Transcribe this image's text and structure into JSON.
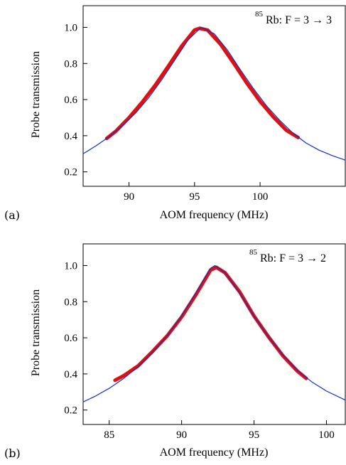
{
  "chart_data": [
    {
      "type": "line",
      "panel_label": "(a)",
      "xlabel": "AOM frequency (MHz)",
      "ylabel": "Probe transmission",
      "annotation": {
        "isotope_mass": "85",
        "text": "Rb: F = 3 → 3"
      },
      "xlim": [
        86.5,
        106.5
      ],
      "ylim": [
        0.12,
        1.12
      ],
      "xticks": [
        90,
        95,
        100
      ],
      "xtick_labels": [
        "90",
        "95",
        "100"
      ],
      "yticks": [
        0.2,
        0.4,
        0.6,
        0.8,
        1.0
      ],
      "ytick_labels": [
        "0.2",
        "0.4",
        "0.6",
        "0.8",
        "1.0"
      ],
      "grid": false,
      "series": [
        {
          "kind": "fit",
          "color": "#1030c8",
          "x": [
            86.5,
            87.5,
            88.5,
            89.5,
            90.5,
            91.5,
            92.5,
            93.5,
            94.5,
            95.5,
            96.5,
            97.5,
            98.5,
            99.5,
            100.5,
            101.5,
            102.5,
            103.5,
            104.5,
            105.5,
            106.5
          ],
          "y": [
            0.3,
            0.345,
            0.395,
            0.455,
            0.525,
            0.61,
            0.71,
            0.82,
            0.93,
            1.0,
            0.965,
            0.875,
            0.765,
            0.66,
            0.565,
            0.485,
            0.415,
            0.36,
            0.32,
            0.29,
            0.265
          ]
        },
        {
          "kind": "data",
          "color": "#e01010",
          "x": [
            88.3,
            89.0,
            90.0,
            91.0,
            92.0,
            93.0,
            94.0,
            95.0,
            95.4,
            96.0,
            97.0,
            98.0,
            99.0,
            100.0,
            101.0,
            102.0,
            102.9
          ],
          "y": [
            0.385,
            0.425,
            0.5,
            0.585,
            0.68,
            0.785,
            0.895,
            0.985,
            0.995,
            0.985,
            0.905,
            0.8,
            0.69,
            0.59,
            0.505,
            0.43,
            0.39
          ]
        }
      ]
    },
    {
      "type": "line",
      "panel_label": "(b)",
      "xlabel": "AOM frequency (MHz)",
      "ylabel": "Probe transmission",
      "annotation": {
        "isotope_mass": "85",
        "text": "Rb: F = 3 → 2"
      },
      "xlim": [
        83.2,
        101.3
      ],
      "ylim": [
        0.12,
        1.12
      ],
      "xticks": [
        85,
        90,
        95,
        100
      ],
      "xtick_labels": [
        "85",
        "90",
        "95",
        "100"
      ],
      "yticks": [
        0.2,
        0.4,
        0.6,
        0.8,
        1.0
      ],
      "ytick_labels": [
        "0.2",
        "0.4",
        "0.6",
        "0.8",
        "1.0"
      ],
      "grid": false,
      "series": [
        {
          "kind": "fit",
          "color": "#1030c8",
          "x": [
            83.2,
            84.0,
            85.0,
            86.0,
            87.0,
            88.0,
            89.0,
            90.0,
            91.0,
            92.0,
            92.3,
            93.0,
            94.0,
            95.0,
            96.0,
            97.0,
            98.0,
            99.0,
            100.0,
            101.3
          ],
          "y": [
            0.245,
            0.275,
            0.32,
            0.375,
            0.44,
            0.52,
            0.61,
            0.72,
            0.85,
            0.985,
            1.0,
            0.96,
            0.85,
            0.72,
            0.605,
            0.505,
            0.42,
            0.355,
            0.305,
            0.255
          ]
        },
        {
          "kind": "data",
          "color": "#e01010",
          "x": [
            85.4,
            86.0,
            87.0,
            88.0,
            89.0,
            90.0,
            91.0,
            92.0,
            92.4,
            93.0,
            94.0,
            95.0,
            96.0,
            97.0,
            98.0,
            98.6
          ],
          "y": [
            0.365,
            0.39,
            0.445,
            0.525,
            0.61,
            0.715,
            0.84,
            0.975,
            0.99,
            0.96,
            0.855,
            0.72,
            0.605,
            0.5,
            0.415,
            0.375
          ]
        }
      ]
    }
  ]
}
